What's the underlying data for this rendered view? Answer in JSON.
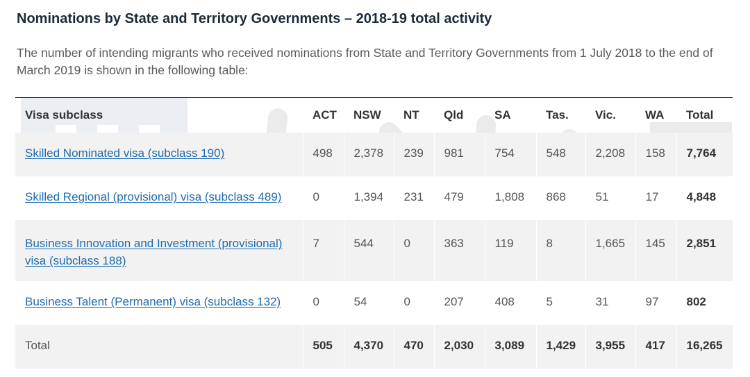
{
  "page": {
    "title": "Nominations by State and Territory Governments – 2018-19 total activity",
    "intro": "The number of intending migrants who received nominations from State and Territory Governments from 1 July 2018 to the end of March 2019 is shown in the following table:"
  },
  "table": {
    "headers": [
      "Visa subclass",
      "ACT",
      "NSW",
      "NT",
      "Qld",
      "SA",
      "Tas.",
      "Vic.",
      "WA",
      "Total"
    ],
    "rows": [
      {
        "label": "Skilled Nominated visa (subclass 190)",
        "values": [
          "498",
          "2,378",
          "239",
          "981",
          "754",
          "548",
          "2,208",
          "158"
        ],
        "total": "7,764"
      },
      {
        "label": "Skilled Regional (provisional) visa (subclass 489)",
        "values": [
          "0",
          "1,394",
          "231",
          "479",
          "1,808",
          "868",
          "51",
          "17"
        ],
        "total": "4,848"
      },
      {
        "label": "Business Innovation and Investment (provisional) visa (subclass 188)",
        "values": [
          "7",
          "544",
          "0",
          "363",
          "119",
          "8",
          "1,665",
          "145"
        ],
        "total": "2,851"
      },
      {
        "label": "Business Talent (Permanent) visa (subclass 132)",
        "values": [
          "0",
          "54",
          "0",
          "207",
          "408",
          "5",
          "31",
          "97"
        ],
        "total": "802"
      }
    ],
    "total_row": {
      "label": "Total",
      "values": [
        "505",
        "4,370",
        "470",
        "2,030",
        "3,089",
        "1,429",
        "3,955",
        "417"
      ],
      "total": "16,265"
    }
  },
  "colors": {
    "link": "#1f6bb0",
    "row_shade": "#f2f2f2",
    "title": "#1b2a3a"
  }
}
